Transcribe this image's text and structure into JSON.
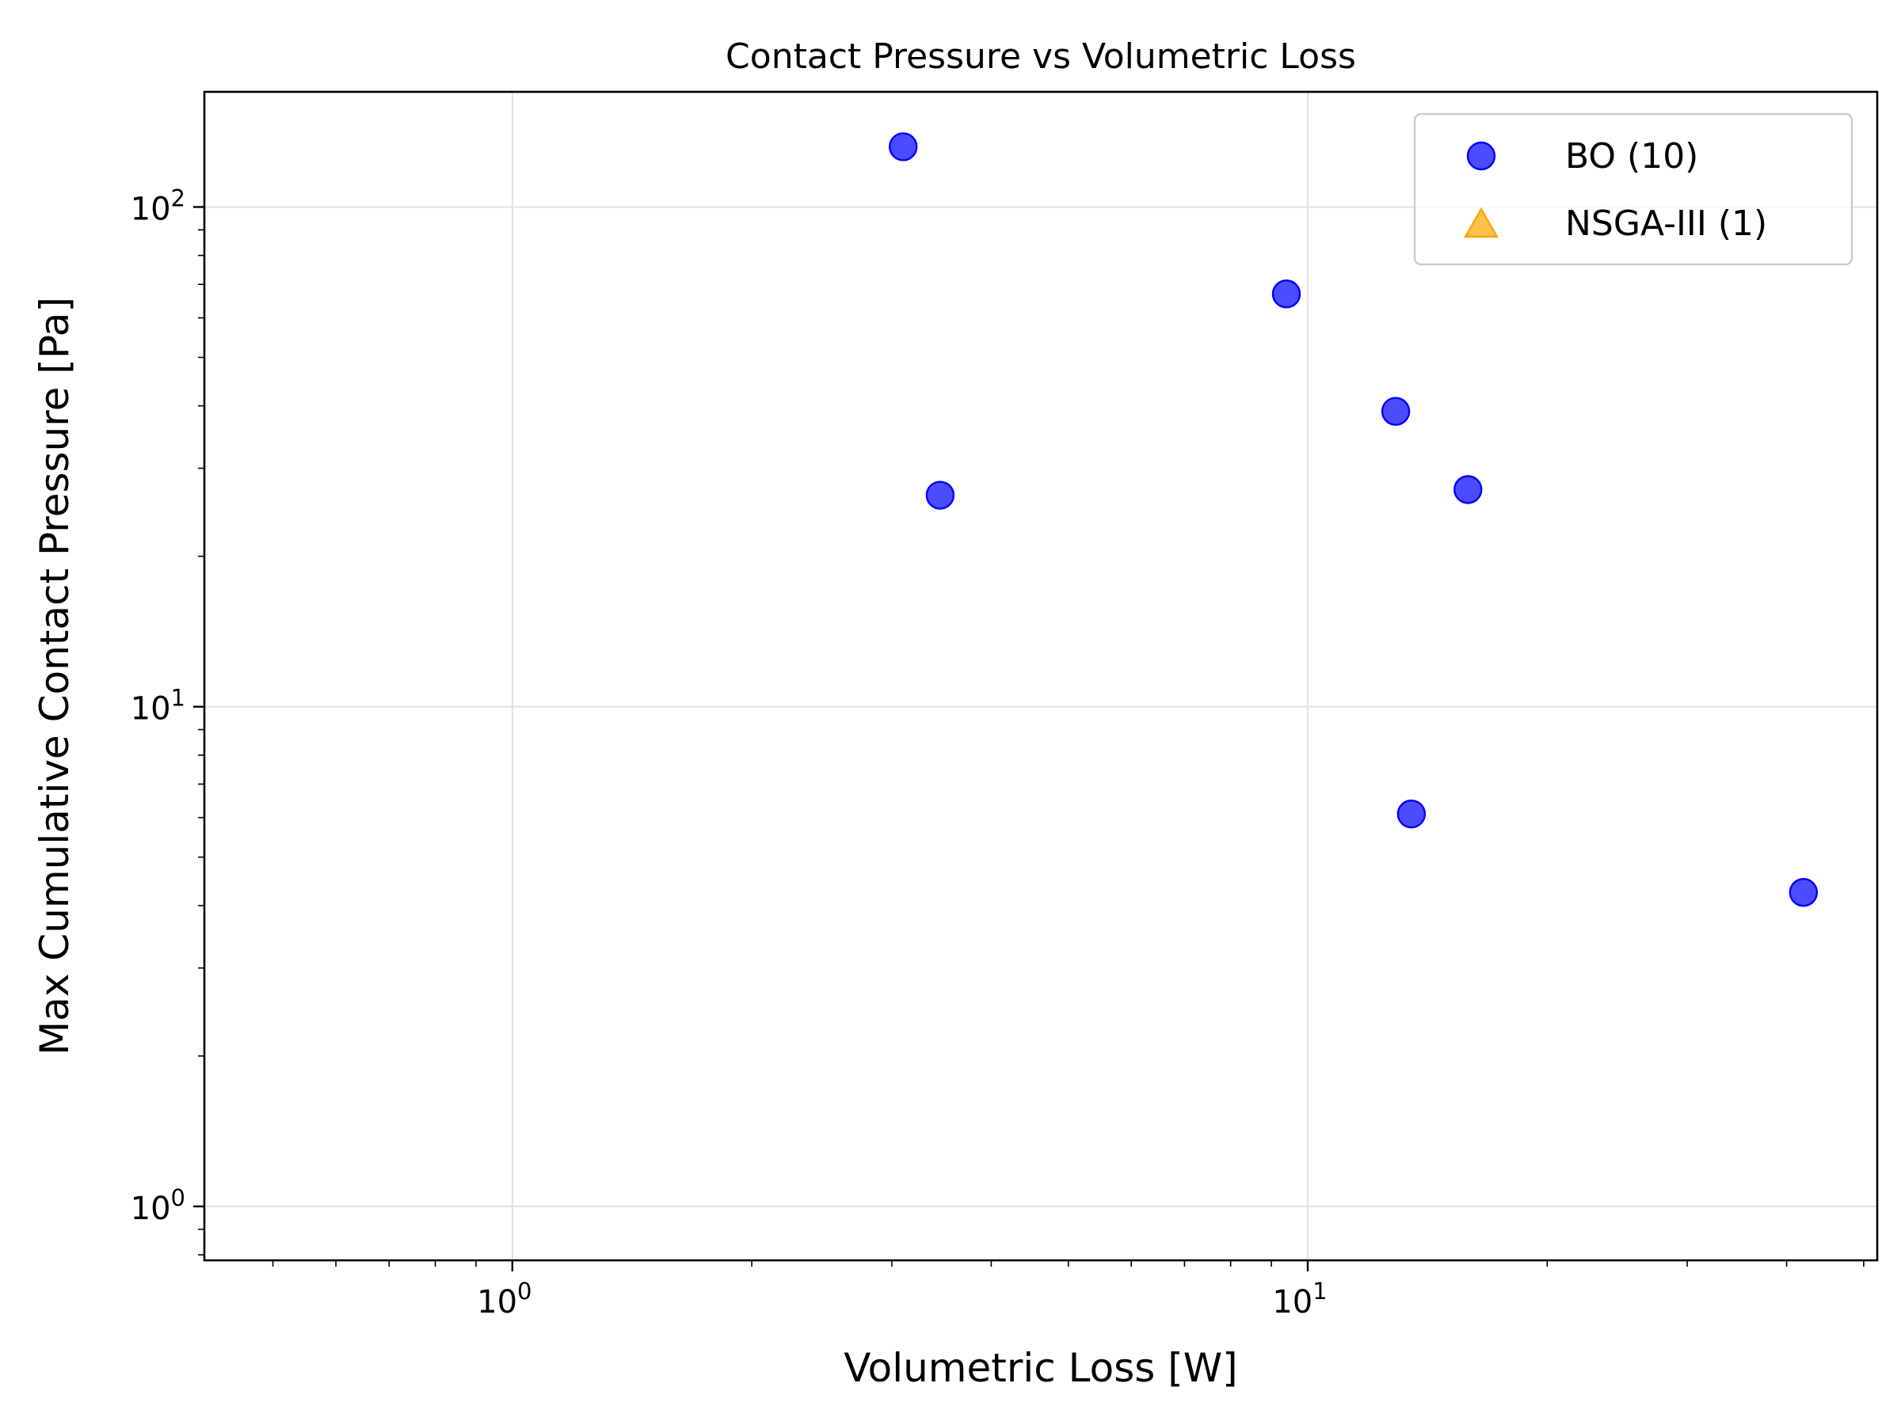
{
  "chart_data": {
    "type": "scatter",
    "title": "Contact Pressure vs Volumetric Loss",
    "xlabel": "Volumetric Loss [W]",
    "ylabel": "Max Cumulative Contact Pressure [Pa]",
    "xscale": "log",
    "yscale": "log",
    "xlim": [
      0.41,
      52
    ],
    "ylim": [
      0.78,
      170
    ],
    "x_ticks": [
      {
        "base": "10",
        "exp": "0",
        "value": 1
      },
      {
        "base": "10",
        "exp": "1",
        "value": 10
      }
    ],
    "y_ticks": [
      {
        "base": "10",
        "exp": "0",
        "value": 1
      },
      {
        "base": "10",
        "exp": "1",
        "value": 10
      },
      {
        "base": "10",
        "exp": "2",
        "value": 100
      }
    ],
    "grid": true,
    "legend_position": "top-right",
    "series": [
      {
        "name": "BO (10)",
        "marker": "circle",
        "color": "#0000ff",
        "points": [
          {
            "x": 3.1,
            "y": 132
          },
          {
            "x": 3.45,
            "y": 26.5
          },
          {
            "x": 9.4,
            "y": 67
          },
          {
            "x": 12.9,
            "y": 39
          },
          {
            "x": 13.5,
            "y": 6.1
          },
          {
            "x": 15.9,
            "y": 27.2
          },
          {
            "x": 42.0,
            "y": 4.25
          }
        ]
      },
      {
        "name": "NSGA-III (1)",
        "marker": "triangle",
        "color": "#ffa500",
        "points": []
      }
    ]
  }
}
